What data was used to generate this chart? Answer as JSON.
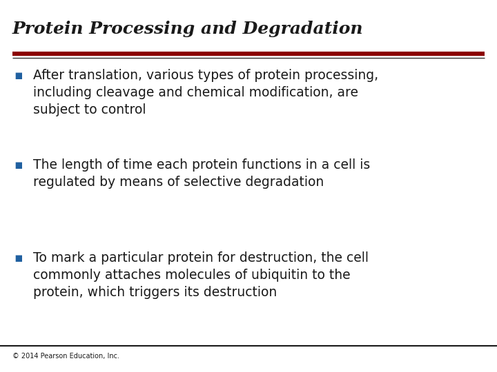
{
  "title": "Protein Processing and Degradation",
  "title_color": "#1a1a1a",
  "title_fontsize": 18,
  "title_fontstyle": "italic",
  "title_fontfamily": "serif",
  "title_fontweight": "bold",
  "separator_color_top": "#8B0000",
  "separator_color_bottom": "#1a1a1a",
  "background_color": "#ffffff",
  "bullet_color": "#2060a0",
  "text_color": "#1a1a1a",
  "bullet_points": [
    "After translation, various types of protein processing,\nincluding cleavage and chemical modification, are\nsubject to control",
    "The length of time each protein functions in a cell is\nregulated by means of selective degradation",
    "To mark a particular protein for destruction, the cell\ncommonly attaches molecules of ubiquitin to the\nprotein, which triggers its destruction"
  ],
  "footer_text": "© 2014 Pearson Education, Inc.",
  "footer_fontsize": 7,
  "text_fontsize": 13.5,
  "text_fontfamily": "DejaVu Sans"
}
